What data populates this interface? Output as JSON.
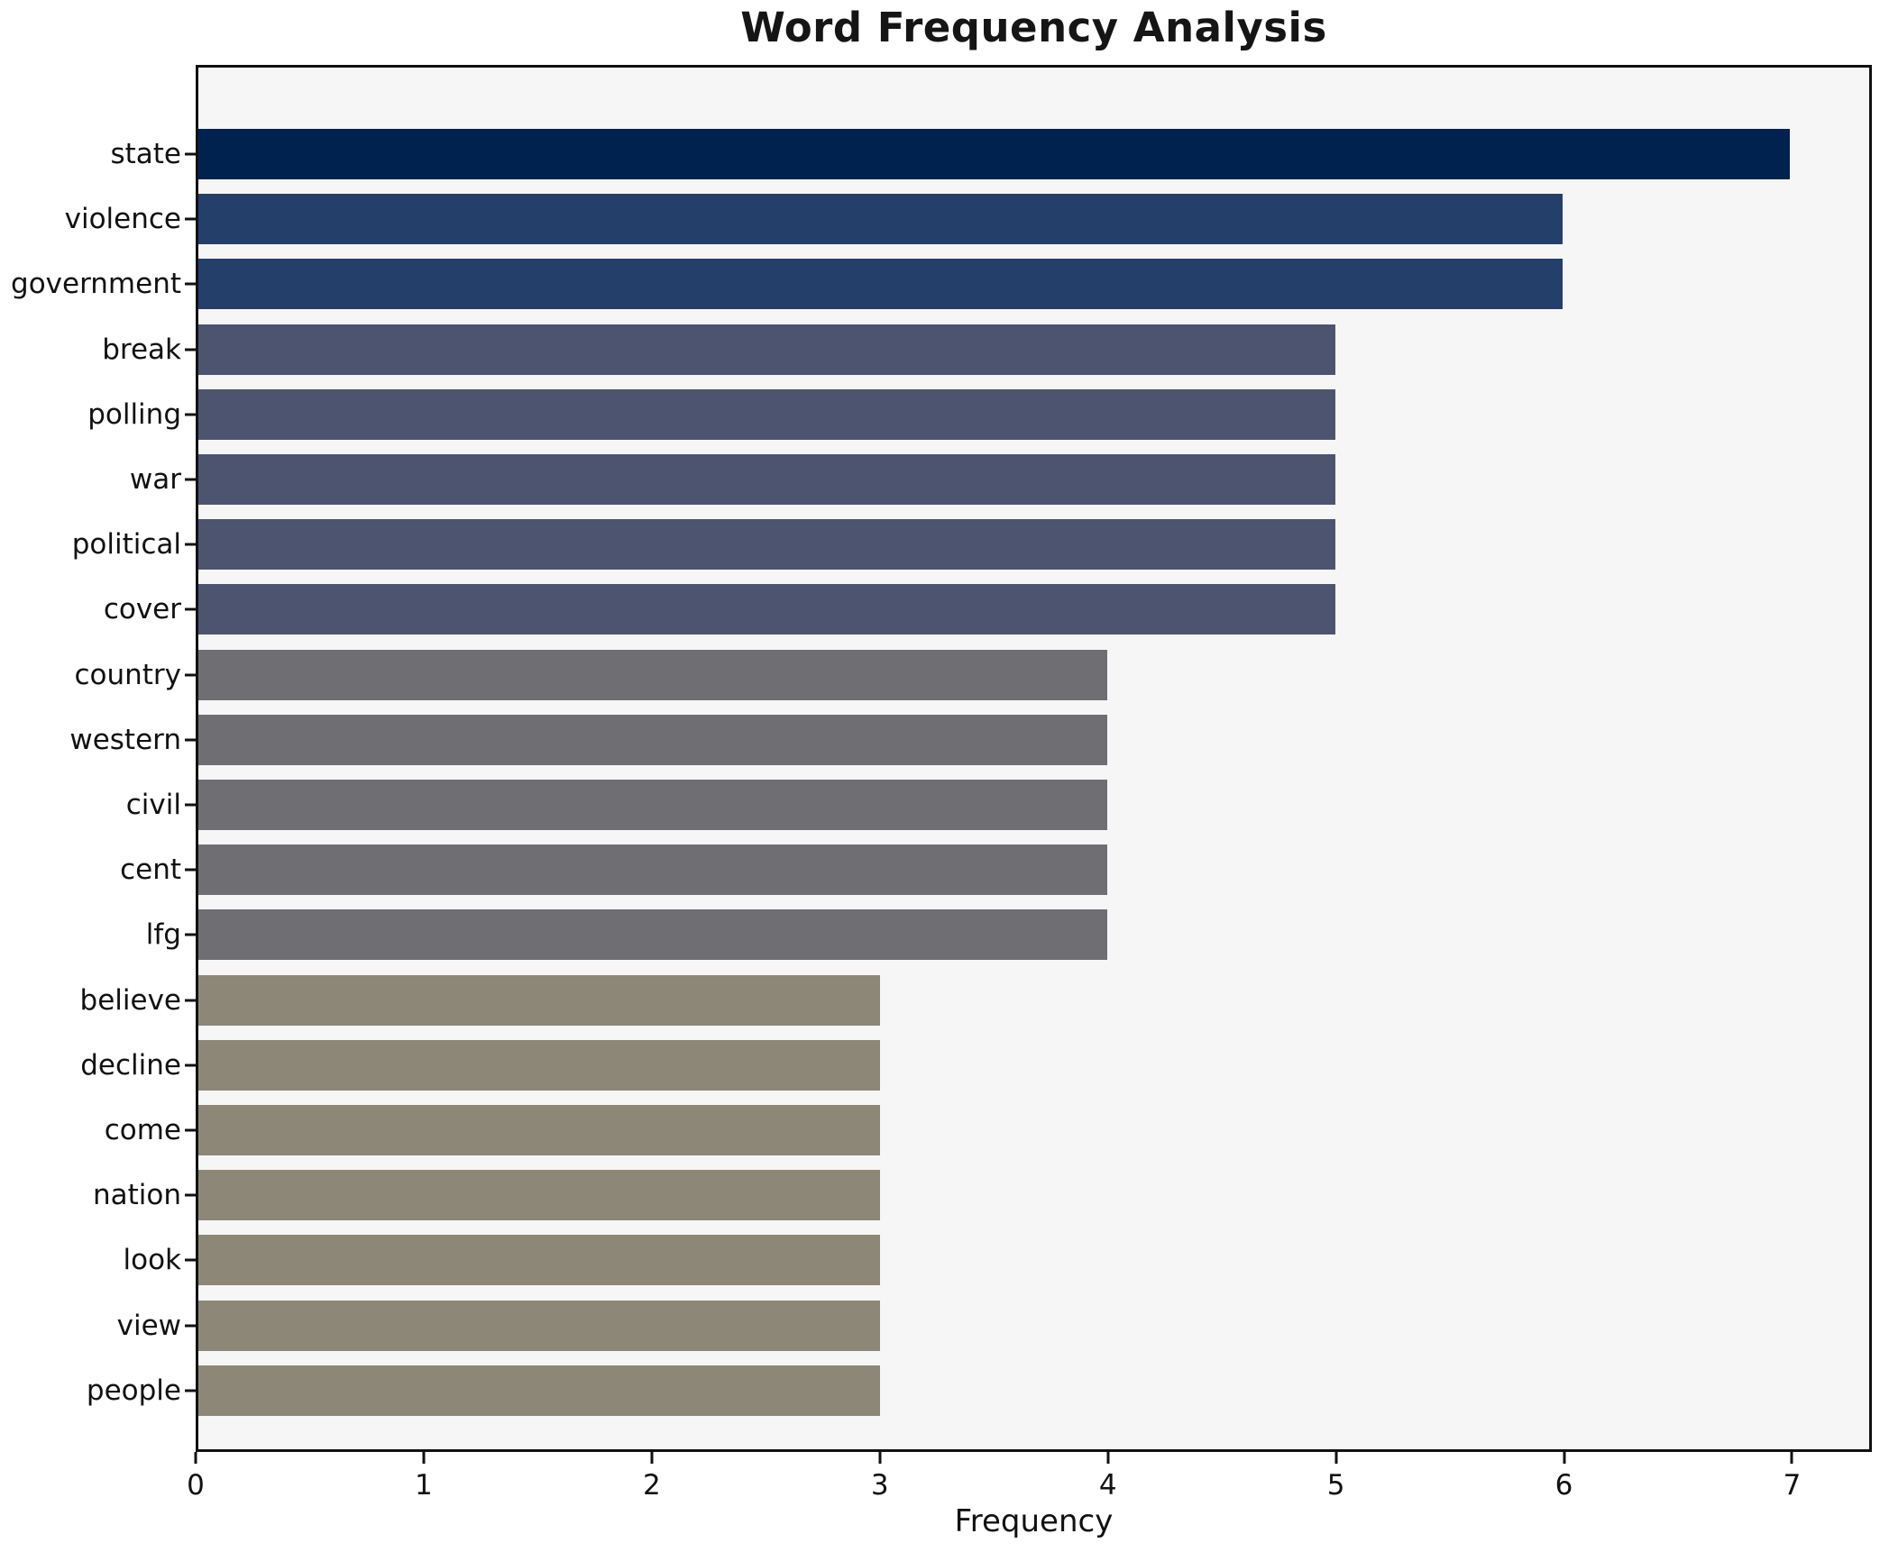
{
  "chart_data": {
    "type": "bar",
    "orientation": "horizontal",
    "title": "Word Frequency Analysis",
    "xlabel": "Frequency",
    "ylabel": "",
    "categories": [
      "state",
      "violence",
      "government",
      "break",
      "polling",
      "war",
      "political",
      "cover",
      "country",
      "western",
      "civil",
      "cent",
      "lfg",
      "believe",
      "decline",
      "come",
      "nation",
      "look",
      "view",
      "people"
    ],
    "values": [
      7,
      6,
      6,
      5,
      5,
      5,
      5,
      5,
      4,
      4,
      4,
      4,
      4,
      3,
      3,
      3,
      3,
      3,
      3,
      3
    ],
    "bar_colors": [
      "#00224e",
      "#253f6b",
      "#253f6b",
      "#4c5470",
      "#4c5470",
      "#4c5470",
      "#4c5470",
      "#4c5470",
      "#6e6e73",
      "#6e6e73",
      "#6e6e73",
      "#6e6e73",
      "#6e6e73",
      "#8d8777",
      "#8d8777",
      "#8d8777",
      "#8d8777",
      "#8d8777",
      "#8d8777",
      "#8d8777"
    ],
    "x_ticks": [
      0,
      1,
      2,
      3,
      4,
      5,
      6,
      7
    ],
    "xlim": [
      0,
      7.35
    ],
    "grid": false,
    "legend": null,
    "plot_bg": "#f6f6f7",
    "figure_bg": "#ffffff",
    "spine_color": "#111111"
  }
}
